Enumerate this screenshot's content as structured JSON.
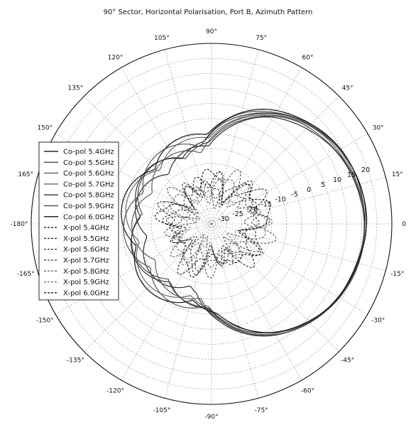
{
  "chart_data": {
    "type": "polar-line",
    "title": "90° Sector, Horizontal Polarisation, Port B, Azimuth Pattern",
    "angle_ticks": [
      {
        "angle": 0,
        "label": "0"
      },
      {
        "angle": 15,
        "label": "15°"
      },
      {
        "angle": 30,
        "label": "30°"
      },
      {
        "angle": 45,
        "label": "45°"
      },
      {
        "angle": 60,
        "label": "60°"
      },
      {
        "angle": 75,
        "label": "75°"
      },
      {
        "angle": 90,
        "label": "90°"
      },
      {
        "angle": 105,
        "label": "105°"
      },
      {
        "angle": 120,
        "label": "120°"
      },
      {
        "angle": 135,
        "label": "135°"
      },
      {
        "angle": 150,
        "label": "150°"
      },
      {
        "angle": 165,
        "label": "165°"
      },
      {
        "angle": 180,
        "label": "-180°"
      },
      {
        "angle": -165,
        "label": "-165°"
      },
      {
        "angle": -150,
        "label": "-150°"
      },
      {
        "angle": -135,
        "label": "-135°"
      },
      {
        "angle": -120,
        "label": "-120°"
      },
      {
        "angle": -105,
        "label": "-105°"
      },
      {
        "angle": -90,
        "label": "-90°"
      },
      {
        "angle": -75,
        "label": "-75°"
      },
      {
        "angle": -60,
        "label": "-60°"
      },
      {
        "angle": -45,
        "label": "-45°"
      },
      {
        "angle": -30,
        "label": "-30°"
      },
      {
        "angle": -15,
        "label": "-15°"
      }
    ],
    "radial_ticks": [
      "-30",
      "-25",
      "-20",
      "-15",
      "-10",
      "-5",
      "0",
      "5",
      "10",
      "15",
      "20"
    ],
    "r_range": [
      -35,
      25
    ],
    "legend_position": "left",
    "series": [
      {
        "name": "Co-pol 5.4GHz",
        "color": "#2b2b2b",
        "dash": "solid",
        "gain": 15.6,
        "floor": 0.06,
        "beam_offset": -3,
        "seed": 1
      },
      {
        "name": "Co-pol 5.5GHz",
        "color": "#4a4a4a",
        "dash": "solid",
        "gain": 15.8,
        "floor": 0.07,
        "beam_offset": -2,
        "seed": 2
      },
      {
        "name": "Co-pol 5.6GHz",
        "color": "#5c5c5c",
        "dash": "solid",
        "gain": 16.0,
        "floor": 0.06,
        "beam_offset": -1,
        "seed": 3
      },
      {
        "name": "Co-pol 5.7GHz",
        "color": "#6a6a6a",
        "dash": "solid",
        "gain": 16.1,
        "floor": 0.08,
        "beam_offset": 0,
        "seed": 4
      },
      {
        "name": "Co-pol 5.8GHz",
        "color": "#333333",
        "dash": "solid",
        "gain": 16.2,
        "floor": 0.07,
        "beam_offset": 1,
        "seed": 5
      },
      {
        "name": "Co-pol 5.9GHz",
        "color": "#555555",
        "dash": "solid",
        "gain": 16.3,
        "floor": 0.08,
        "beam_offset": 2,
        "seed": 6
      },
      {
        "name": "Co-pol 6.0GHz",
        "color": "#111111",
        "dash": "solid",
        "gain": 16.4,
        "floor": 0.09,
        "beam_offset": 3,
        "seed": 7
      },
      {
        "name": "X-pol 5.4GHz",
        "color": "#222222",
        "dash": "dashed",
        "gain": -22,
        "floor": 0.55,
        "beam_offset": 0,
        "seed": 11
      },
      {
        "name": "X-pol 5.5GHz",
        "color": "#333333",
        "dash": "dashed",
        "gain": -23,
        "floor": 0.5,
        "beam_offset": 0,
        "seed": 12
      },
      {
        "name": "X-pol 5.6GHz",
        "color": "#444444",
        "dash": "dashed",
        "gain": -24,
        "floor": 0.55,
        "beam_offset": 0,
        "seed": 13
      },
      {
        "name": "X-pol 5.7GHz",
        "color": "#555555",
        "dash": "dashed",
        "gain": -22.5,
        "floor": 0.5,
        "beam_offset": 0,
        "seed": 14
      },
      {
        "name": "X-pol 5.8GHz",
        "color": "#666666",
        "dash": "dashed",
        "gain": -23.5,
        "floor": 0.55,
        "beam_offset": 0,
        "seed": 15
      },
      {
        "name": "X-pol 5.9GHz",
        "color": "#777777",
        "dash": "dashed",
        "gain": -24.5,
        "floor": 0.5,
        "beam_offset": 0,
        "seed": 16
      },
      {
        "name": "X-pol 6.0GHz",
        "color": "#111111",
        "dash": "dashed",
        "gain": -21.5,
        "floor": 0.6,
        "beam_offset": 0,
        "seed": 17
      }
    ]
  }
}
